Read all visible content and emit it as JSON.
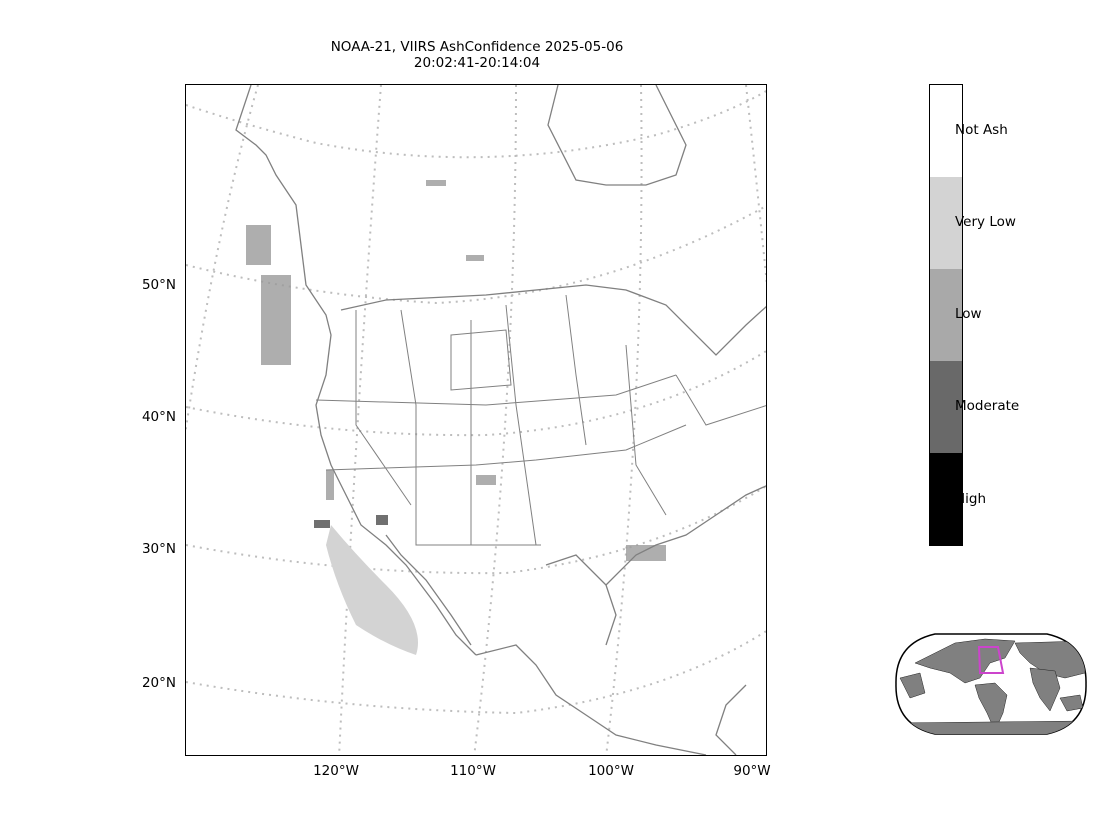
{
  "title": {
    "line1": "NOAA-21, VIIRS AshConfidence 2025-05-06",
    "line2": "20:02:41-20:14:04"
  },
  "lat_labels": [
    "50°N",
    "40°N",
    "30°N",
    "20°N"
  ],
  "lon_labels": [
    "120°W",
    "110°W",
    "100°W",
    "90°W"
  ],
  "colorbar": {
    "labels": [
      "Not Ash",
      "Very Low",
      "Low",
      "Moderate",
      "High"
    ],
    "colors": [
      "#ffffff",
      "#d3d3d3",
      "#a9a9a9",
      "#696969",
      "#000000"
    ]
  },
  "colors": {
    "coastline": "#808080",
    "gridline": "#bdbdbd",
    "inset_land": "#808080",
    "inset_box": "#cc44cc"
  }
}
